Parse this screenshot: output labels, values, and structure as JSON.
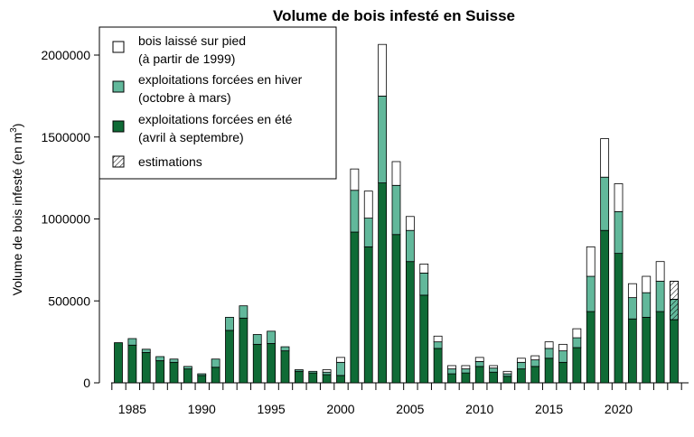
{
  "chart_data": {
    "type": "bar",
    "stacked": true,
    "title": "Volume de bois infesté en Suisse",
    "ylabel_main": "Volume de bois infesté (en m",
    "ylabel_sup": "3",
    "ylabel_close": ")",
    "ylim": [
      0,
      2100000
    ],
    "yticks": [
      0,
      500000,
      1000000,
      1500000,
      2000000
    ],
    "ytick_labels": [
      "0",
      "500000",
      "1000000",
      "1500000",
      "2000000"
    ],
    "xticks": [
      1985,
      1990,
      1995,
      2000,
      2005,
      2010,
      2015,
      2020
    ],
    "xtick_labels": [
      "1985",
      "1990",
      "1995",
      "2000",
      "2005",
      "2010",
      "2015",
      "2020"
    ],
    "years": [
      1984,
      1985,
      1986,
      1987,
      1988,
      1989,
      1990,
      1991,
      1992,
      1993,
      1994,
      1995,
      1996,
      1997,
      1998,
      1999,
      2000,
      2001,
      2002,
      2003,
      2004,
      2005,
      2006,
      2007,
      2008,
      2009,
      2010,
      2011,
      2012,
      2013,
      2014,
      2015,
      2016,
      2017,
      2018,
      2019,
      2020,
      2021,
      2022,
      2023,
      2024
    ],
    "series": [
      {
        "name": "exploitations forcées en été",
        "name_line2": "(avril à septembre)",
        "color": "#0f6b36",
        "values": [
          245000,
          230000,
          185000,
          135000,
          125000,
          85000,
          45000,
          95000,
          320000,
          395000,
          235000,
          240000,
          195000,
          70000,
          60000,
          50000,
          45000,
          920000,
          830000,
          1220000,
          905000,
          740000,
          535000,
          210000,
          55000,
          60000,
          100000,
          65000,
          40000,
          85000,
          100000,
          150000,
          125000,
          215000,
          435000,
          930000,
          790000,
          390000,
          400000,
          435000,
          385000
        ]
      },
      {
        "name": "exploitations forcées en hiver",
        "name_line2": "(octobre à mars)",
        "color": "#62b89b",
        "values": [
          0,
          40000,
          20000,
          25000,
          20000,
          15000,
          10000,
          50000,
          80000,
          75000,
          60000,
          75000,
          25000,
          10000,
          10000,
          15000,
          80000,
          255000,
          175000,
          530000,
          300000,
          190000,
          135000,
          40000,
          30000,
          25000,
          30000,
          25000,
          15000,
          40000,
          40000,
          60000,
          70000,
          60000,
          215000,
          325000,
          255000,
          130000,
          150000,
          185000,
          125000
        ]
      },
      {
        "name": "bois laissé sur pied",
        "name_line2": "(à partir de 1999)",
        "color": "#ffffff",
        "values": [
          0,
          0,
          0,
          0,
          0,
          0,
          0,
          0,
          0,
          0,
          0,
          0,
          0,
          0,
          0,
          15000,
          30000,
          130000,
          165000,
          315000,
          145000,
          85000,
          55000,
          35000,
          20000,
          20000,
          25000,
          15000,
          15000,
          25000,
          25000,
          40000,
          40000,
          55000,
          180000,
          235000,
          170000,
          85000,
          100000,
          120000,
          110000
        ]
      }
    ],
    "estimated": [
      false,
      false,
      false,
      false,
      false,
      false,
      false,
      false,
      false,
      false,
      false,
      false,
      false,
      false,
      false,
      false,
      false,
      false,
      false,
      false,
      false,
      false,
      false,
      false,
      false,
      false,
      false,
      false,
      false,
      false,
      false,
      false,
      false,
      false,
      false,
      false,
      false,
      false,
      false,
      false,
      true
    ],
    "legend_estimation": "estimations",
    "legend_position": "top-left",
    "grid": false
  }
}
